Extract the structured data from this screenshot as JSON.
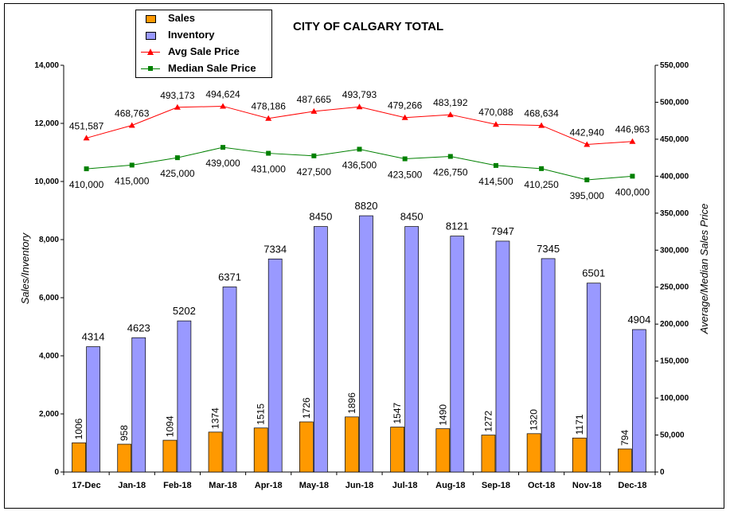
{
  "chart_data": {
    "type": "bar",
    "title": "CITY OF CALGARY TOTAL",
    "categories": [
      "17-Dec",
      "Jan-18",
      "Feb-18",
      "Mar-18",
      "Apr-18",
      "May-18",
      "Jun-18",
      "Jul-18",
      "Aug-18",
      "Sep-18",
      "Oct-18",
      "Nov-18",
      "Dec-18"
    ],
    "series": [
      {
        "name": "Sales",
        "kind": "bar",
        "axis": "left",
        "color": "#FF9900",
        "values": [
          1006,
          958,
          1094,
          1374,
          1515,
          1726,
          1896,
          1547,
          1490,
          1272,
          1320,
          1171,
          794
        ],
        "labels": [
          "1006",
          "958",
          "1094",
          "1374",
          "1515",
          "1726",
          "1896",
          "1547",
          "1490",
          "1272",
          "1320",
          "1171",
          "794"
        ]
      },
      {
        "name": "Inventory",
        "kind": "bar",
        "axis": "left",
        "color": "#9999FF",
        "values": [
          4314,
          4623,
          5202,
          6371,
          7334,
          8450,
          8820,
          8450,
          8121,
          7947,
          7345,
          6501,
          4904
        ],
        "labels": [
          "4314",
          "4623",
          "5202",
          "6371",
          "7334",
          "8450",
          "8820",
          "8450",
          "8121",
          "7947",
          "7345",
          "6501",
          "4904"
        ]
      },
      {
        "name": "Avg Sale Price",
        "kind": "line",
        "axis": "right",
        "color": "#FF0000",
        "marker": "triangle",
        "values": [
          451587,
          468763,
          493173,
          494624,
          478186,
          487665,
          493793,
          479266,
          483192,
          470088,
          468634,
          442940,
          446963
        ],
        "labels": [
          "451,587",
          "468,763",
          "493,173",
          "494,624",
          "478,186",
          "487,665",
          "493,793",
          "479,266",
          "483,192",
          "470,088",
          "468,634",
          "442,940",
          "446,963"
        ]
      },
      {
        "name": "Median Sale Price",
        "kind": "line",
        "axis": "right",
        "color": "#008000",
        "marker": "square",
        "values": [
          410000,
          415000,
          425000,
          439000,
          431000,
          427500,
          436500,
          423500,
          426750,
          414500,
          410250,
          395000,
          400000
        ],
        "labels": [
          "410,000",
          "415,000",
          "425,000",
          "439,000",
          "431,000",
          "427,500",
          "436,500",
          "423,500",
          "426,750",
          "414,500",
          "410,250",
          "395,000",
          "400,000"
        ]
      }
    ],
    "ylabel": "Sales/Inventory",
    "y2label": "Average/Median Sales Price",
    "ylim": [
      0,
      14000
    ],
    "y2lim": [
      0,
      550000
    ],
    "yticks": [
      "0",
      "2,000",
      "4,000",
      "6,000",
      "8,000",
      "10,000",
      "12,000",
      "14,000"
    ],
    "y2ticks": [
      "0",
      "50,000",
      "100,000",
      "150,000",
      "200,000",
      "250,000",
      "300,000",
      "350,000",
      "400,000",
      "450,000",
      "500,000",
      "550,000"
    ],
    "grid": false,
    "legend": "top-left"
  }
}
